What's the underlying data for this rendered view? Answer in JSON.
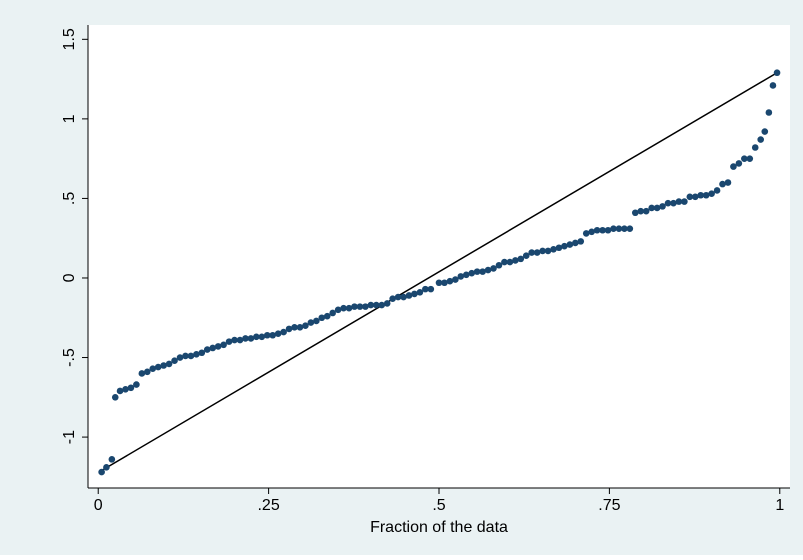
{
  "chart_data": {
    "type": "scatter",
    "xlabel": "Fraction of the data",
    "xlim": [
      -0.015,
      1.015
    ],
    "ylim": [
      -1.32,
      1.59
    ],
    "xticks": [
      0,
      {
        "value": 0.25,
        "label": ".25"
      },
      {
        "value": 0.5,
        "label": ".5"
      },
      {
        "value": 0.75,
        "label": ".75"
      },
      1
    ],
    "yticks": [
      {
        "value": -1,
        "label": "-1"
      },
      {
        "value": -0.5,
        "label": "-.5"
      },
      0,
      {
        "value": 0.5,
        "label": ".5"
      },
      1,
      {
        "value": 1.5,
        "label": "1.5"
      }
    ],
    "series": [
      {
        "color": "#1a476f",
        "x": [
          0.005,
          0.012,
          0.02,
          0.025,
          0.032,
          0.04,
          0.048,
          0.056,
          0.064,
          0.072,
          0.08,
          0.088,
          0.096,
          0.104,
          0.112,
          0.12,
          0.128,
          0.136,
          0.144,
          0.152,
          0.16,
          0.168,
          0.176,
          0.184,
          0.192,
          0.2,
          0.208,
          0.216,
          0.224,
          0.232,
          0.24,
          0.248,
          0.256,
          0.264,
          0.272,
          0.28,
          0.288,
          0.296,
          0.304,
          0.312,
          0.32,
          0.328,
          0.336,
          0.344,
          0.352,
          0.36,
          0.368,
          0.376,
          0.384,
          0.392,
          0.4,
          0.408,
          0.416,
          0.424,
          0.432,
          0.44,
          0.448,
          0.456,
          0.464,
          0.472,
          0.48,
          0.488,
          0.5,
          0.508,
          0.516,
          0.524,
          0.532,
          0.54,
          0.548,
          0.556,
          0.564,
          0.572,
          0.58,
          0.588,
          0.596,
          0.604,
          0.612,
          0.62,
          0.628,
          0.636,
          0.644,
          0.652,
          0.66,
          0.668,
          0.676,
          0.684,
          0.692,
          0.7,
          0.708,
          0.716,
          0.724,
          0.732,
          0.74,
          0.748,
          0.756,
          0.764,
          0.772,
          0.78,
          0.788,
          0.796,
          0.804,
          0.812,
          0.82,
          0.828,
          0.836,
          0.844,
          0.852,
          0.86,
          0.868,
          0.876,
          0.884,
          0.892,
          0.9,
          0.908,
          0.916,
          0.924,
          0.932,
          0.94,
          0.948,
          0.956,
          0.964,
          0.972,
          0.978,
          0.984,
          0.99,
          0.996
        ],
        "values": [
          -1.22,
          -1.19,
          -1.14,
          -0.75,
          -0.71,
          -0.7,
          -0.69,
          -0.67,
          -0.6,
          -0.59,
          -0.57,
          -0.56,
          -0.55,
          -0.54,
          -0.52,
          -0.5,
          -0.49,
          -0.49,
          -0.48,
          -0.47,
          -0.45,
          -0.44,
          -0.43,
          -0.42,
          -0.4,
          -0.39,
          -0.39,
          -0.38,
          -0.38,
          -0.37,
          -0.37,
          -0.36,
          -0.36,
          -0.35,
          -0.34,
          -0.32,
          -0.31,
          -0.31,
          -0.3,
          -0.28,
          -0.27,
          -0.25,
          -0.24,
          -0.22,
          -0.2,
          -0.19,
          -0.19,
          -0.18,
          -0.18,
          -0.18,
          -0.17,
          -0.17,
          -0.17,
          -0.16,
          -0.13,
          -0.12,
          -0.12,
          -0.11,
          -0.1,
          -0.09,
          -0.07,
          -0.07,
          -0.03,
          -0.03,
          -0.02,
          -0.01,
          0.01,
          0.02,
          0.03,
          0.04,
          0.04,
          0.05,
          0.06,
          0.08,
          0.1,
          0.1,
          0.11,
          0.12,
          0.14,
          0.16,
          0.16,
          0.17,
          0.17,
          0.18,
          0.19,
          0.2,
          0.21,
          0.22,
          0.23,
          0.28,
          0.29,
          0.3,
          0.3,
          0.3,
          0.31,
          0.31,
          0.31,
          0.31,
          0.41,
          0.42,
          0.42,
          0.44,
          0.44,
          0.45,
          0.47,
          0.47,
          0.48,
          0.48,
          0.51,
          0.51,
          0.52,
          0.52,
          0.53,
          0.55,
          0.59,
          0.6,
          0.7,
          0.72,
          0.75,
          0.75,
          0.82,
          0.87,
          0.92,
          1.04,
          1.21,
          1.29
        ]
      }
    ],
    "reference_line": {
      "color": "#000000",
      "x": [
        0.005,
        0.996
      ],
      "values": [
        -1.21,
        1.29
      ]
    }
  }
}
